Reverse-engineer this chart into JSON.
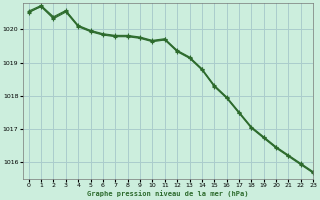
{
  "background_color": "#cceedd",
  "grid_color": "#aacccc",
  "line_color": "#2d6b2d",
  "marker_color": "#2d6b2d",
  "title": "Graphe pression niveau de la mer (hPa)",
  "xlim": [
    -0.5,
    23
  ],
  "ylim": [
    1015.5,
    1020.8
  ],
  "yticks": [
    1016,
    1017,
    1018,
    1019,
    1020
  ],
  "xticks": [
    0,
    1,
    2,
    3,
    4,
    5,
    6,
    7,
    8,
    9,
    10,
    11,
    12,
    13,
    14,
    15,
    16,
    17,
    18,
    19,
    20,
    21,
    22,
    23
  ],
  "series": [
    {
      "x": [
        0,
        1,
        2,
        3,
        4,
        5,
        6,
        7,
        8,
        9,
        10,
        11,
        12,
        13,
        14,
        15,
        16,
        17,
        18,
        19,
        20,
        21,
        22,
        23
      ],
      "y": [
        1020.5,
        1020.7,
        1020.35,
        1020.55,
        1020.1,
        1019.95,
        1019.85,
        1019.8,
        1019.8,
        1019.75,
        1019.65,
        1019.7,
        1019.35,
        1019.15,
        1018.8,
        1018.3,
        1017.95,
        1017.5,
        1017.05,
        1016.75,
        1016.45,
        1016.2,
        1015.95,
        1015.7
      ]
    },
    {
      "x": [
        0,
        1,
        2,
        3,
        4,
        5,
        6,
        7,
        8,
        9,
        10,
        11,
        12,
        13,
        14,
        15,
        16,
        17,
        18,
        19,
        20,
        21,
        22,
        23
      ],
      "y": [
        1020.55,
        1020.72,
        1020.38,
        1020.57,
        1020.12,
        1019.97,
        1019.87,
        1019.82,
        1019.82,
        1019.77,
        1019.67,
        1019.72,
        1019.37,
        1019.17,
        1018.82,
        1018.32,
        1017.97,
        1017.52,
        1017.07,
        1016.77,
        1016.47,
        1016.22,
        1015.97,
        1015.72
      ]
    },
    {
      "x": [
        0,
        1,
        2,
        3,
        4,
        5,
        6,
        7,
        8,
        9,
        10,
        11,
        12,
        13,
        14,
        15,
        16,
        17,
        18,
        19,
        20,
        21,
        22,
        23
      ],
      "y": [
        1020.52,
        1020.68,
        1020.32,
        1020.52,
        1020.08,
        1019.93,
        1019.83,
        1019.78,
        1019.78,
        1019.73,
        1019.63,
        1019.68,
        1019.33,
        1019.13,
        1018.78,
        1018.28,
        1017.93,
        1017.48,
        1017.03,
        1016.73,
        1016.43,
        1016.18,
        1015.93,
        1015.68
      ]
    }
  ]
}
